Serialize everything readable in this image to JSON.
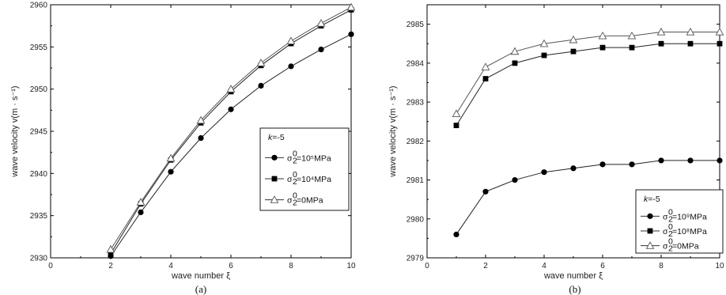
{
  "chart_data": [
    {
      "type": "line",
      "caption": "(a)",
      "xlabel": "wave number ξ",
      "ylabel": "wave velocity v(m · s⁻¹)",
      "xlim": [
        0,
        10
      ],
      "ylim": [
        2930,
        2960
      ],
      "xticks": [
        0,
        2,
        4,
        6,
        8,
        10
      ],
      "yticks": [
        2930,
        2935,
        2940,
        2945,
        2950,
        2955,
        2960
      ],
      "legend": {
        "title": "k=-5",
        "placement": "center-right",
        "entries": [
          {
            "base": "σ",
            "sub": "2",
            "sup": "0",
            "text": "=10⁵MPa"
          },
          {
            "base": "σ",
            "sub": "2",
            "sup": "0",
            "text": "=10⁴MPa"
          },
          {
            "base": "σ",
            "sub": "2",
            "sup": "0",
            "text": "=0MPa"
          }
        ]
      },
      "series": [
        {
          "marker": "circle-filled",
          "x": [
            2,
            3,
            4,
            5,
            6,
            7,
            8,
            9,
            10
          ],
          "values": [
            2930.2,
            2935.4,
            2940.2,
            2944.2,
            2947.6,
            2950.4,
            2952.7,
            2954.7,
            2956.5
          ]
        },
        {
          "marker": "square-filled",
          "x": [
            2,
            3,
            4,
            5,
            6,
            7,
            8,
            9,
            10
          ],
          "values": [
            2930.5,
            2936.4,
            2941.6,
            2946.0,
            2949.7,
            2952.8,
            2955.4,
            2957.5,
            2959.4
          ]
        },
        {
          "marker": "triangle-open",
          "x": [
            2,
            3,
            4,
            5,
            6,
            7,
            8,
            9,
            10
          ],
          "values": [
            2931.0,
            2936.6,
            2941.8,
            2946.3,
            2950.0,
            2953.1,
            2955.7,
            2957.8,
            2959.7
          ]
        }
      ]
    },
    {
      "type": "line",
      "caption": "(b)",
      "xlabel": "wave number ξ",
      "ylabel": "wave velocity v(m · s⁻¹)",
      "xlim": [
        0,
        10
      ],
      "ylim": [
        2979,
        2985.5
      ],
      "xticks": [
        0,
        2,
        4,
        6,
        8,
        10
      ],
      "yticks": [
        2979,
        2980,
        2981,
        2982,
        2983,
        2984,
        2985
      ],
      "legend": {
        "title": "k=-5",
        "placement": "bottom-right",
        "entries": [
          {
            "base": "σ",
            "sub": "2",
            "sup": "0",
            "text": "=10⁹MPa"
          },
          {
            "base": "σ",
            "sub": "2",
            "sup": "0",
            "text": "=10⁸MPa"
          },
          {
            "base": "σ",
            "sub": "2",
            "sup": "0",
            "text": "=0MPa"
          }
        ]
      },
      "series": [
        {
          "marker": "circle-filled",
          "x": [
            1,
            2,
            3,
            4,
            5,
            6,
            7,
            8,
            9,
            10
          ],
          "values": [
            2979.6,
            2980.7,
            2981.0,
            2981.2,
            2981.3,
            2981.4,
            2981.4,
            2981.5,
            2981.5,
            2981.5
          ]
        },
        {
          "marker": "square-filled",
          "x": [
            1,
            2,
            3,
            4,
            5,
            6,
            7,
            8,
            9,
            10
          ],
          "values": [
            2982.4,
            2983.6,
            2984.0,
            2984.2,
            2984.3,
            2984.4,
            2984.4,
            2984.5,
            2984.5,
            2984.5
          ]
        },
        {
          "marker": "triangle-open",
          "x": [
            1,
            2,
            3,
            4,
            5,
            6,
            7,
            8,
            9,
            10
          ],
          "values": [
            2982.7,
            2983.9,
            2984.3,
            2984.5,
            2984.6,
            2984.7,
            2984.7,
            2984.8,
            2984.8,
            2984.8
          ]
        }
      ]
    }
  ]
}
